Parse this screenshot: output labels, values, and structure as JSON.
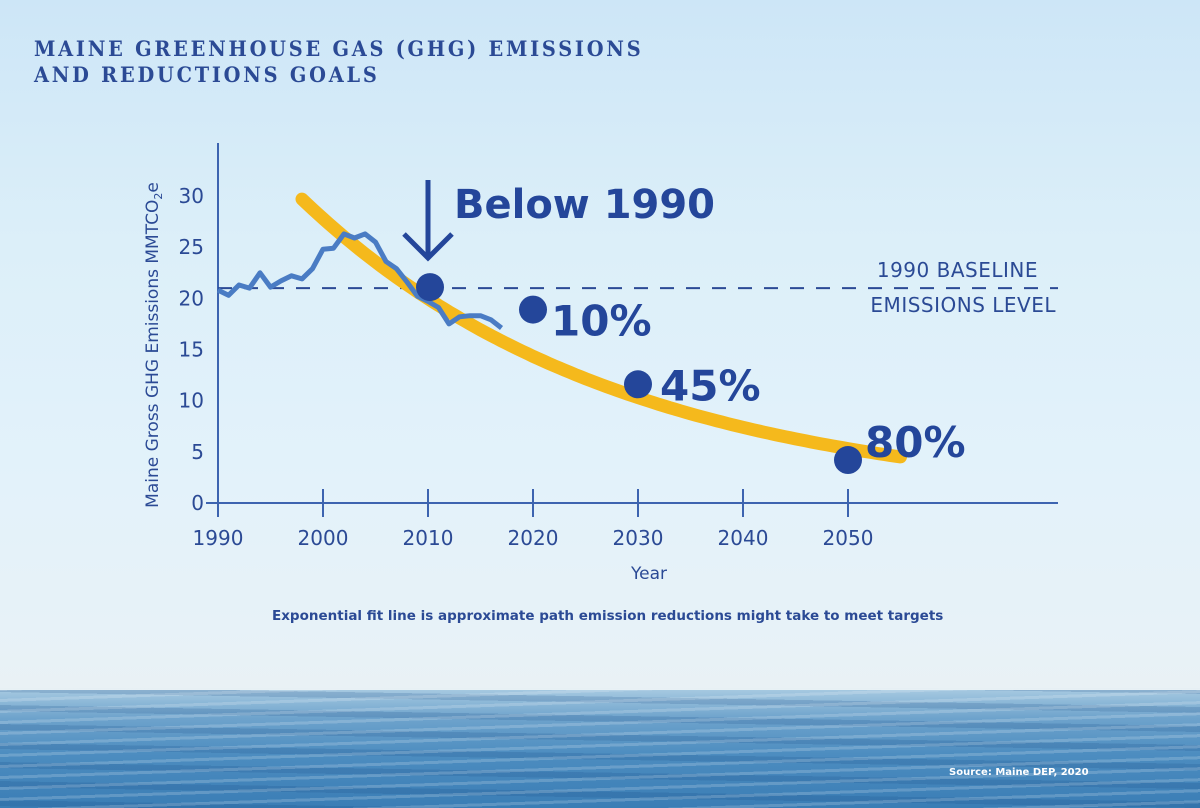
{
  "title": {
    "line1": "MAINE GREENHOUSE GAS (GHG) EMISSIONS",
    "line2": "AND REDUCTIONS GOALS"
  },
  "source": "Source: Maine DEP, 2020",
  "note": "Exponential fit line is approximate path emission reductions might take to meet targets",
  "colors": {
    "text": "#2b4a95",
    "historical_line": "#4a7cc4",
    "fit_line": "#f5b91c",
    "target_dot": "#24469a",
    "axis": "#3d64b0"
  },
  "chart_data": {
    "type": "line",
    "title": "MAINE GREENHOUSE GAS (GHG) EMISSIONS AND REDUCTIONS GOALS",
    "xlabel": "Year",
    "ylabel": "Maine Gross GHG Emissions MMTCO2e",
    "ylabel_main": "Maine Gross GHG Emissions MMTCO",
    "ylabel_sub": "2",
    "ylabel_tail": "e",
    "xlim": [
      1990,
      2050
    ],
    "ylim": [
      0,
      30
    ],
    "x_ticks": [
      1990,
      2000,
      2010,
      2020,
      2030,
      2040,
      2050
    ],
    "y_ticks": [
      0,
      5,
      10,
      15,
      20,
      25,
      30
    ],
    "grid": false,
    "baseline": {
      "value": 21,
      "label_line1": "1990 BASELINE",
      "label_line2": "EMISSIONS LEVEL"
    },
    "series": [
      {
        "name": "Historical emissions",
        "x": [
          1990,
          1991,
          1992,
          1993,
          1994,
          1995,
          1996,
          1997,
          1998,
          1999,
          2000,
          2001,
          2002,
          2003,
          2004,
          2005,
          2006,
          2007,
          2008,
          2009,
          2010,
          2011,
          2012,
          2013,
          2014,
          2015,
          2016,
          2017
        ],
        "values": [
          20.8,
          20.3,
          21.3,
          21.0,
          22.5,
          21.1,
          21.7,
          22.2,
          21.9,
          22.9,
          24.8,
          24.9,
          26.3,
          25.9,
          26.3,
          25.5,
          23.6,
          22.9,
          21.6,
          20.2,
          19.7,
          19.1,
          17.5,
          18.2,
          18.3,
          18.3,
          17.9,
          17.1
        ]
      },
      {
        "name": "Exponential fit",
        "x": [
          1998,
          2055
        ],
        "fit": {
          "a": 29.7,
          "rate": 0.0331,
          "x0": 1998
        }
      }
    ],
    "annotations": [
      {
        "label": "Below 1990",
        "year": 2010,
        "value": 21.1,
        "arrow": true
      },
      {
        "label": "10%",
        "year": 2020,
        "value": 18.9
      },
      {
        "label": "45%",
        "year": 2030,
        "value": 11.6
      },
      {
        "label": "80%",
        "year": 2050,
        "value": 4.2
      }
    ]
  }
}
